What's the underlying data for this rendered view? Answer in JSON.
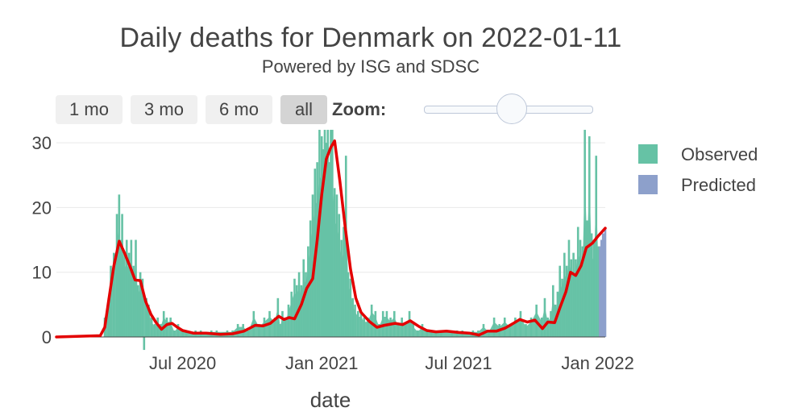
{
  "header": {
    "title": "Daily deaths for Denmark on 2022-01-11",
    "subtitle": "Powered by ISG and SDSC"
  },
  "controls": {
    "range_buttons": [
      "1 mo",
      "3 mo",
      "6 mo",
      "all"
    ],
    "active_button": "all",
    "zoom_label": "Zoom:"
  },
  "colors": {
    "observed": "#66c2a5",
    "predicted": "#8da0cb",
    "trend": "#e30000",
    "grid": "#e9e9e9",
    "button_bg": "#f0f0f0",
    "button_active_bg": "#d4d4d4"
  },
  "chart_data": {
    "type": "bar",
    "title": "Daily deaths for Denmark on 2022-01-11",
    "subtitle": "Powered by ISG and SDSC",
    "xlabel": "date",
    "ylabel": "",
    "x_ticks": [
      "Jul 2020",
      "Jan 2021",
      "Jul 2021",
      "Jan 2022"
    ],
    "y_ticks": [
      0,
      10,
      20,
      30
    ],
    "ylim": [
      -2,
      32
    ],
    "xlim": [
      "2020-01-16",
      "2022-01-11"
    ],
    "legend": {
      "position": "right",
      "entries": [
        "Observed",
        "Predicted"
      ]
    },
    "grid": "horizontal",
    "series": [
      {
        "name": "Observed",
        "kind": "bar",
        "points": [
          [
            "2020-03-20",
            3
          ],
          [
            "2020-03-25",
            6
          ],
          [
            "2020-03-28",
            11
          ],
          [
            "2020-04-01",
            13
          ],
          [
            "2020-04-05",
            19
          ],
          [
            "2020-04-08",
            22
          ],
          [
            "2020-04-10",
            15
          ],
          [
            "2020-04-12",
            19
          ],
          [
            "2020-04-15",
            13
          ],
          [
            "2020-04-18",
            15
          ],
          [
            "2020-04-21",
            13
          ],
          [
            "2020-04-24",
            15
          ],
          [
            "2020-04-27",
            11
          ],
          [
            "2020-04-30",
            15
          ],
          [
            "2020-05-03",
            8
          ],
          [
            "2020-05-06",
            10
          ],
          [
            "2020-05-09",
            9
          ],
          [
            "2020-05-11",
            -2
          ],
          [
            "2020-05-14",
            6
          ],
          [
            "2020-05-17",
            5
          ],
          [
            "2020-05-21",
            3
          ],
          [
            "2020-05-25",
            2
          ],
          [
            "2020-05-29",
            3
          ],
          [
            "2020-06-02",
            2
          ],
          [
            "2020-06-06",
            4
          ],
          [
            "2020-06-10",
            3
          ],
          [
            "2020-06-15",
            3
          ],
          [
            "2020-06-20",
            1
          ],
          [
            "2020-06-25",
            2
          ],
          [
            "2020-07-01",
            1
          ],
          [
            "2020-07-06",
            1
          ],
          [
            "2020-07-12",
            0
          ],
          [
            "2020-07-18",
            1
          ],
          [
            "2020-07-25",
            1
          ],
          [
            "2020-08-01",
            0
          ],
          [
            "2020-08-08",
            1
          ],
          [
            "2020-08-15",
            1
          ],
          [
            "2020-08-22",
            0
          ],
          [
            "2020-08-29",
            1
          ],
          [
            "2020-09-05",
            1
          ],
          [
            "2020-09-12",
            2
          ],
          [
            "2020-09-19",
            2
          ],
          [
            "2020-09-26",
            1
          ],
          [
            "2020-10-03",
            4
          ],
          [
            "2020-10-10",
            2
          ],
          [
            "2020-10-17",
            3
          ],
          [
            "2020-10-24",
            4
          ],
          [
            "2020-10-31",
            3
          ],
          [
            "2020-11-04",
            6
          ],
          [
            "2020-11-07",
            2
          ],
          [
            "2020-11-10",
            4
          ],
          [
            "2020-11-14",
            3
          ],
          [
            "2020-11-18",
            5
          ],
          [
            "2020-11-22",
            7
          ],
          [
            "2020-11-26",
            9
          ],
          [
            "2020-11-29",
            8
          ],
          [
            "2020-12-02",
            10
          ],
          [
            "2020-12-05",
            8
          ],
          [
            "2020-12-08",
            12
          ],
          [
            "2020-12-11",
            10
          ],
          [
            "2020-12-14",
            14
          ],
          [
            "2020-12-17",
            18
          ],
          [
            "2020-12-20",
            22
          ],
          [
            "2020-12-23",
            26
          ],
          [
            "2020-12-26",
            27
          ],
          [
            "2020-12-29",
            32
          ],
          [
            "2021-01-01",
            31
          ],
          [
            "2021-01-03",
            29
          ],
          [
            "2021-01-05",
            32
          ],
          [
            "2021-01-07",
            30
          ],
          [
            "2021-01-09",
            32
          ],
          [
            "2021-01-11",
            27
          ],
          [
            "2021-01-13",
            32
          ],
          [
            "2021-01-15",
            32
          ],
          [
            "2021-01-18",
            23
          ],
          [
            "2021-01-21",
            22
          ],
          [
            "2021-01-24",
            19
          ],
          [
            "2021-01-27",
            15
          ],
          [
            "2021-01-30",
            17
          ],
          [
            "2021-02-02",
            28
          ],
          [
            "2021-02-05",
            10
          ],
          [
            "2021-02-08",
            9
          ],
          [
            "2021-02-11",
            6
          ],
          [
            "2021-02-14",
            5
          ],
          [
            "2021-02-18",
            4
          ],
          [
            "2021-02-22",
            4
          ],
          [
            "2021-02-26",
            3
          ],
          [
            "2021-03-03",
            3
          ],
          [
            "2021-03-08",
            5
          ],
          [
            "2021-03-13",
            4
          ],
          [
            "2021-03-18",
            2
          ],
          [
            "2021-03-23",
            4
          ],
          [
            "2021-03-28",
            4
          ],
          [
            "2021-04-02",
            3
          ],
          [
            "2021-04-07",
            4
          ],
          [
            "2021-04-12",
            2
          ],
          [
            "2021-04-17",
            3
          ],
          [
            "2021-04-22",
            2
          ],
          [
            "2021-04-27",
            4
          ],
          [
            "2021-05-02",
            2
          ],
          [
            "2021-05-08",
            1
          ],
          [
            "2021-05-14",
            2
          ],
          [
            "2021-05-20",
            1
          ],
          [
            "2021-05-26",
            1
          ],
          [
            "2021-06-01",
            1
          ],
          [
            "2021-06-08",
            1
          ],
          [
            "2021-06-15",
            0
          ],
          [
            "2021-06-22",
            1
          ],
          [
            "2021-06-29",
            1
          ],
          [
            "2021-07-06",
            1
          ],
          [
            "2021-07-13",
            0
          ],
          [
            "2021-07-20",
            1
          ],
          [
            "2021-07-27",
            1
          ],
          [
            "2021-08-03",
            2
          ],
          [
            "2021-08-10",
            1
          ],
          [
            "2021-08-17",
            3
          ],
          [
            "2021-08-24",
            2
          ],
          [
            "2021-08-31",
            3
          ],
          [
            "2021-09-07",
            2
          ],
          [
            "2021-09-14",
            3
          ],
          [
            "2021-09-21",
            4
          ],
          [
            "2021-09-28",
            2
          ],
          [
            "2021-10-05",
            3
          ],
          [
            "2021-10-12",
            5
          ],
          [
            "2021-10-19",
            3
          ],
          [
            "2021-10-23",
            6
          ],
          [
            "2021-10-27",
            3
          ],
          [
            "2021-10-31",
            4
          ],
          [
            "2021-11-03",
            8
          ],
          [
            "2021-11-06",
            5
          ],
          [
            "2021-11-09",
            7
          ],
          [
            "2021-11-12",
            11
          ],
          [
            "2021-11-15",
            9
          ],
          [
            "2021-11-18",
            13
          ],
          [
            "2021-11-21",
            11
          ],
          [
            "2021-11-24",
            15
          ],
          [
            "2021-11-27",
            12
          ],
          [
            "2021-11-30",
            13
          ],
          [
            "2021-12-03",
            12
          ],
          [
            "2021-12-06",
            17
          ],
          [
            "2021-12-09",
            15
          ],
          [
            "2021-12-12",
            14
          ],
          [
            "2021-12-15",
            32
          ],
          [
            "2021-12-18",
            18
          ],
          [
            "2021-12-21",
            31
          ],
          [
            "2021-12-24",
            16
          ],
          [
            "2021-12-27",
            15
          ],
          [
            "2021-12-30",
            28
          ],
          [
            "2022-01-02",
            14
          ]
        ]
      },
      {
        "name": "Predicted",
        "kind": "bar",
        "points": [
          [
            "2022-01-04",
            14
          ],
          [
            "2022-01-06",
            15
          ],
          [
            "2022-01-08",
            16
          ],
          [
            "2022-01-10",
            16
          ],
          [
            "2022-01-11",
            17
          ]
        ]
      },
      {
        "kind": "line",
        "points": [
          [
            "2020-01-16",
            0
          ],
          [
            "2020-03-14",
            0.2
          ],
          [
            "2020-03-20",
            1.5
          ],
          [
            "2020-03-25",
            5.5
          ],
          [
            "2020-04-01",
            11
          ],
          [
            "2020-04-08",
            14.8
          ],
          [
            "2020-04-15",
            13
          ],
          [
            "2020-04-22",
            11
          ],
          [
            "2020-04-29",
            8.8
          ],
          [
            "2020-05-06",
            8.7
          ],
          [
            "2020-05-13",
            5.5
          ],
          [
            "2020-05-20",
            3.5
          ],
          [
            "2020-05-27",
            2.2
          ],
          [
            "2020-06-03",
            1.2
          ],
          [
            "2020-06-10",
            1.9
          ],
          [
            "2020-06-17",
            2.1
          ],
          [
            "2020-06-24",
            1.5
          ],
          [
            "2020-07-01",
            1.0
          ],
          [
            "2020-07-15",
            0.6
          ],
          [
            "2020-08-01",
            0.6
          ],
          [
            "2020-08-20",
            0.4
          ],
          [
            "2020-09-05",
            0.5
          ],
          [
            "2020-09-20",
            0.9
          ],
          [
            "2020-10-05",
            1.8
          ],
          [
            "2020-10-15",
            1.7
          ],
          [
            "2020-10-25",
            2.1
          ],
          [
            "2020-11-05",
            3.2
          ],
          [
            "2020-11-12",
            2.7
          ],
          [
            "2020-11-19",
            3.0
          ],
          [
            "2020-11-26",
            2.8
          ],
          [
            "2020-12-05",
            5.0
          ],
          [
            "2020-12-12",
            7.5
          ],
          [
            "2020-12-20",
            9.0
          ],
          [
            "2020-12-26",
            15.0
          ],
          [
            "2021-01-01",
            22.0
          ],
          [
            "2021-01-07",
            27.5
          ],
          [
            "2021-01-13",
            29.3
          ],
          [
            "2021-01-18",
            30.3
          ],
          [
            "2021-01-25",
            24.0
          ],
          [
            "2021-02-01",
            17.0
          ],
          [
            "2021-02-08",
            10.5
          ],
          [
            "2021-02-15",
            6.0
          ],
          [
            "2021-02-22",
            3.8
          ],
          [
            "2021-03-05",
            2.4
          ],
          [
            "2021-03-15",
            1.5
          ],
          [
            "2021-03-25",
            1.8
          ],
          [
            "2021-04-08",
            2.1
          ],
          [
            "2021-04-18",
            1.9
          ],
          [
            "2021-04-28",
            2.5
          ],
          [
            "2021-05-10",
            1.6
          ],
          [
            "2021-05-20",
            1.0
          ],
          [
            "2021-06-01",
            0.8
          ],
          [
            "2021-06-15",
            0.9
          ],
          [
            "2021-07-01",
            0.7
          ],
          [
            "2021-07-15",
            0.6
          ],
          [
            "2021-07-28",
            0.3
          ],
          [
            "2021-08-08",
            0.9
          ],
          [
            "2021-08-20",
            0.9
          ],
          [
            "2021-09-01",
            1.4
          ],
          [
            "2021-09-10",
            2.0
          ],
          [
            "2021-09-20",
            2.7
          ],
          [
            "2021-09-30",
            2.3
          ],
          [
            "2021-10-10",
            2.6
          ],
          [
            "2021-10-20",
            1.3
          ],
          [
            "2021-10-27",
            2.3
          ],
          [
            "2021-11-05",
            2.2
          ],
          [
            "2021-11-12",
            4.5
          ],
          [
            "2021-11-20",
            7.0
          ],
          [
            "2021-11-26",
            10.0
          ],
          [
            "2021-12-03",
            9.5
          ],
          [
            "2021-12-10",
            11.0
          ],
          [
            "2021-12-17",
            13.8
          ],
          [
            "2021-12-25",
            14.5
          ],
          [
            "2022-01-01",
            15.5
          ],
          [
            "2022-01-11",
            16.8
          ]
        ]
      }
    ]
  }
}
